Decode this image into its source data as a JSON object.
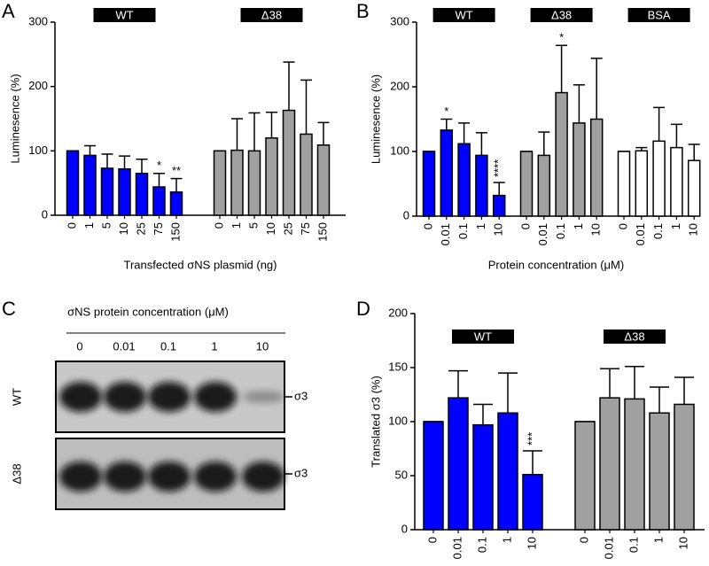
{
  "panel_labels": [
    "A",
    "B",
    "C",
    "D"
  ],
  "chart_data": [
    {
      "type": "bar",
      "ylabel": "Luminesence (%)",
      "xlabel": "Transfected σNS plasmid (ng)",
      "ylim": [
        0,
        300
      ],
      "yticks": [
        0,
        100,
        200,
        300
      ],
      "groups": [
        {
          "name": "WT",
          "color": "#0000ff",
          "categories": [
            "0",
            "1",
            "5",
            "10",
            "25",
            "75",
            "150"
          ],
          "values": [
            100,
            93,
            73,
            72,
            65,
            44,
            36
          ],
          "errors": [
            0,
            15,
            22,
            20,
            22,
            21,
            21
          ],
          "annotations": [
            null,
            null,
            null,
            null,
            null,
            "*",
            "**"
          ]
        },
        {
          "name": "Δ38",
          "color": "#a0a0a0",
          "categories": [
            "0",
            "1",
            "5",
            "10",
            "25",
            "75",
            "150"
          ],
          "values": [
            100,
            101,
            100,
            120,
            163,
            126,
            109
          ],
          "errors": [
            0,
            49,
            59,
            40,
            75,
            84,
            35
          ],
          "annotations": [
            null,
            null,
            null,
            null,
            null,
            null,
            null
          ]
        }
      ]
    },
    {
      "type": "bar",
      "ylabel": "Luminesence (%)",
      "xlabel": "Protein concentration (μM)",
      "ylim": [
        0,
        300
      ],
      "yticks": [
        0,
        100,
        200,
        300
      ],
      "groups": [
        {
          "name": "WT",
          "color": "#0000ff",
          "categories": [
            "0",
            "0.01",
            "0.1",
            "1",
            "10"
          ],
          "values": [
            100,
            133,
            112,
            94,
            32
          ],
          "errors": [
            0,
            17,
            32,
            35,
            20
          ],
          "annotations": [
            null,
            "*",
            null,
            null,
            "****"
          ]
        },
        {
          "name": "Δ38",
          "color": "#a0a0a0",
          "categories": [
            "0",
            "0.01",
            "0.1",
            "1",
            "10"
          ],
          "values": [
            100,
            94,
            191,
            144,
            150
          ],
          "errors": [
            0,
            36,
            73,
            59,
            94
          ],
          "annotations": [
            null,
            null,
            "*",
            null,
            null
          ]
        },
        {
          "name": "BSA",
          "color": "#ffffff",
          "categories": [
            "0",
            "0.01",
            "0.1",
            "1",
            "10"
          ],
          "values": [
            100,
            101,
            116,
            106,
            86
          ],
          "errors": [
            0,
            5,
            52,
            36,
            25
          ],
          "annotations": [
            null,
            null,
            null,
            null,
            null
          ]
        }
      ]
    },
    {
      "type": "bar",
      "ylabel": "Translated σ3 (%)",
      "ylim": [
        0,
        200
      ],
      "yticks": [
        0,
        50,
        100,
        150,
        200
      ],
      "groups": [
        {
          "name": "WT",
          "color": "#0000ff",
          "categories": [
            "0",
            "0.01",
            "0.1",
            "1",
            "10"
          ],
          "values": [
            100,
            122,
            97,
            108,
            51
          ],
          "errors": [
            0,
            25,
            19,
            37,
            22
          ],
          "annotations": [
            null,
            null,
            null,
            null,
            "***"
          ]
        },
        {
          "name": "Δ38",
          "color": "#a0a0a0",
          "categories": [
            "0",
            "0.01",
            "0.1",
            "1",
            "10"
          ],
          "values": [
            100,
            122,
            121,
            108,
            116
          ],
          "errors": [
            0,
            27,
            30,
            24,
            25
          ],
          "annotations": [
            null,
            null,
            null,
            null,
            null
          ]
        }
      ]
    }
  ],
  "blot": {
    "title": "σNS protein concentration (μM)",
    "lanes": [
      "0",
      "0.01",
      "0.1",
      "1",
      "10"
    ],
    "rows": [
      {
        "label": "WT",
        "band": "σ3"
      },
      {
        "label": "Δ38",
        "band": "σ3"
      }
    ]
  }
}
